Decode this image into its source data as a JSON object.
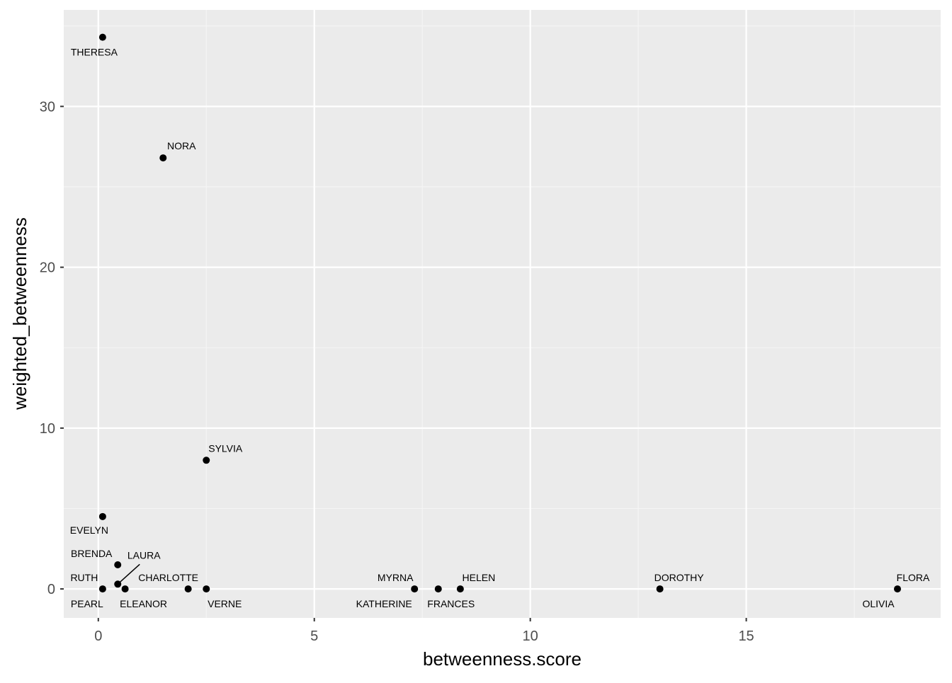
{
  "chart_data": {
    "type": "scatter",
    "title": "",
    "xlabel": "betweenness.score",
    "ylabel": "weighted_betweenness",
    "xlim": [
      -0.8,
      19.5
    ],
    "ylim": [
      -1.8,
      36
    ],
    "x_ticks": [
      0,
      5,
      10,
      15
    ],
    "y_ticks": [
      0,
      10,
      20,
      30
    ],
    "x_minor_ticks": [
      2.5,
      7.5,
      12.5,
      17.5
    ],
    "y_minor_ticks": [
      5,
      15,
      25,
      35
    ],
    "grid": true,
    "legend": "none",
    "colors": {
      "panel_background": "#ebebeb",
      "grid_major": "#ffffff",
      "grid_minor": "#f5f5f5",
      "point": "#000000",
      "tick_label": "#4d4d4d",
      "axis_title": "#000000"
    },
    "points": [
      {
        "label": "THERESA",
        "x": 0.1,
        "y": 34.3
      },
      {
        "label": "NORA",
        "x": 1.5,
        "y": 26.8
      },
      {
        "label": "SYLVIA",
        "x": 2.5,
        "y": 8.0
      },
      {
        "label": "EVELYN",
        "x": 0.1,
        "y": 4.5
      },
      {
        "label": "BRENDA",
        "x": 0.45,
        "y": 1.5
      },
      {
        "label": "LAURA",
        "x": 0.45,
        "y": 0.3
      },
      {
        "label": "RUTH",
        "x": 0.1,
        "y": 0
      },
      {
        "label": "PEARL",
        "x": 0.1,
        "y": 0
      },
      {
        "label": "ELEANOR",
        "x": 0.62,
        "y": 0
      },
      {
        "label": "CHARLOTTE",
        "x": 2.08,
        "y": 0
      },
      {
        "label": "VERNE",
        "x": 2.5,
        "y": 0
      },
      {
        "label": "MYRNA",
        "x": 7.32,
        "y": 0
      },
      {
        "label": "KATHERINE",
        "x": 7.32,
        "y": 0
      },
      {
        "label": "FRANCES",
        "x": 7.87,
        "y": 0
      },
      {
        "label": "HELEN",
        "x": 8.38,
        "y": 0
      },
      {
        "label": "DOROTHY",
        "x": 13.0,
        "y": 0
      },
      {
        "label": "FLORA",
        "x": 18.5,
        "y": 0
      },
      {
        "label": "OLIVIA",
        "x": 18.5,
        "y": 0
      }
    ]
  }
}
